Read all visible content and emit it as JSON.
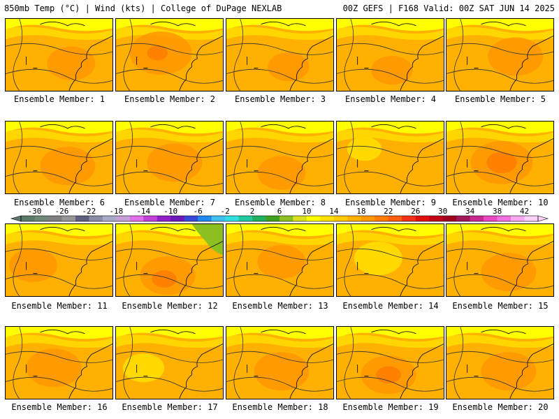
{
  "header": {
    "left": "850mb Temp (°C) | Wind (kts) | College of DuPage NEXLAB",
    "right": "00Z GEFS | F168 Valid: 00Z SAT JUN 14 2025"
  },
  "colorbar": {
    "tick_labels": [
      "-30",
      "-26",
      "-22",
      "-18",
      "-14",
      "-10",
      "-6",
      "-2",
      "2",
      "6",
      "10",
      "14",
      "18",
      "22",
      "26",
      "30",
      "34",
      "38",
      "42"
    ],
    "range_c": [
      -32,
      44
    ],
    "step_c": 2,
    "colors": [
      "#5a7a6a",
      "#6e8878",
      "#7f7f7f",
      "#969696",
      "#5f5f7f",
      "#8b8ba8",
      "#a9a9c8",
      "#c8a0d8",
      "#e070e8",
      "#c040d8",
      "#9020c8",
      "#6a18b8",
      "#3848d8",
      "#2088ee",
      "#40c0f0",
      "#30e0e0",
      "#20c8a0",
      "#20b060",
      "#40a020",
      "#8cc020",
      "#d8e020",
      "#ffff00",
      "#ffe000",
      "#ffc800",
      "#ffb000",
      "#ff9800",
      "#ff7c00",
      "#ff5c10",
      "#f03018",
      "#e01010",
      "#c00018",
      "#a00020",
      "#a01858",
      "#c82890",
      "#e848c0",
      "#f070e0",
      "#f8a8f0",
      "#fcd0f8"
    ]
  },
  "member_label_prefix": "Ensemble Member:",
  "members": [
    {
      "number": "1",
      "label": "Ensemble Member: 1"
    },
    {
      "number": "2",
      "label": "Ensemble Member: 2"
    },
    {
      "number": "3",
      "label": "Ensemble Member: 3"
    },
    {
      "number": "4",
      "label": "Ensemble Member: 4"
    },
    {
      "number": "5",
      "label": "Ensemble Member: 5"
    },
    {
      "number": "6",
      "label": "Ensemble Member: 6"
    },
    {
      "number": "7",
      "label": "Ensemble Member: 7"
    },
    {
      "number": "8",
      "label": "Ensemble Member: 8"
    },
    {
      "number": "9",
      "label": "Ensemble Member: 9"
    },
    {
      "number": "10",
      "label": "Ensemble Member: 10"
    },
    {
      "number": "11",
      "label": "Ensemble Member: 11"
    },
    {
      "number": "12",
      "label": "Ensemble Member: 12"
    },
    {
      "number": "13",
      "label": "Ensemble Member: 13"
    },
    {
      "number": "14",
      "label": "Ensemble Member: 14"
    },
    {
      "number": "15",
      "label": "Ensemble Member: 15"
    },
    {
      "number": "16",
      "label": "Ensemble Member: 16"
    },
    {
      "number": "17",
      "label": "Ensemble Member: 17"
    },
    {
      "number": "18",
      "label": "Ensemble Member: 18"
    },
    {
      "number": "19",
      "label": "Ensemble Member: 19"
    },
    {
      "number": "20",
      "label": "Ensemble Member: 20"
    }
  ],
  "palette": {
    "field_base": "#ffb000",
    "field_warm": "#ff9800",
    "field_hot": "#ff7c00",
    "field_cool": "#ffe000",
    "field_cold": "#ffff00",
    "field_green": "#8cc020"
  }
}
